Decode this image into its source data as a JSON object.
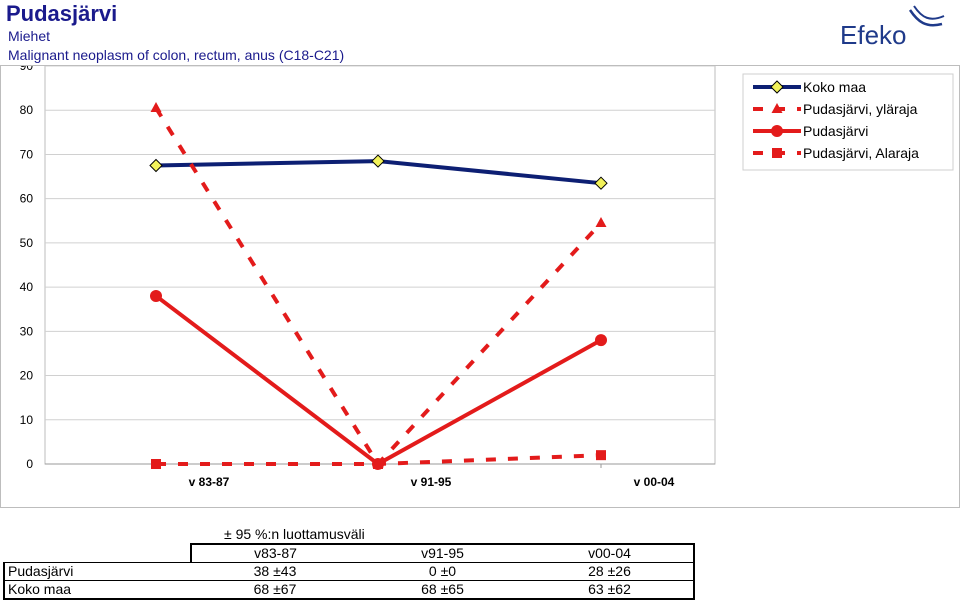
{
  "header": {
    "title": "Pudasjärvi",
    "subtitle": "Miehet",
    "diagnosis": "Malignant neoplasm of colon, rectum, anus (C18-C21)",
    "logo_text": "Efeko",
    "logo_color": "#1f3a8a"
  },
  "chart_data": {
    "type": "line",
    "categories": [
      "v 83-87",
      "v 91-95",
      "v 00-04"
    ],
    "ylim": [
      0,
      90
    ],
    "yticks": [
      0,
      10,
      20,
      30,
      40,
      50,
      60,
      70,
      80,
      90
    ],
    "grid": true,
    "legend_position": "top-right",
    "series": [
      {
        "name": "Koko maa",
        "values": [
          67.5,
          68.5,
          63.5
        ],
        "color": "#0d1f73",
        "style": "solid",
        "marker": "diamond"
      },
      {
        "name": "Pudasjärvi, yläraja",
        "values": [
          80.5,
          0,
          54.5
        ],
        "color": "#e31b1b",
        "style": "dashed",
        "marker": "triangle"
      },
      {
        "name": "Pudasjärvi",
        "values": [
          38,
          0,
          28
        ],
        "color": "#e31b1b",
        "style": "solid",
        "marker": "circle"
      },
      {
        "name": "Pudasjärvi, Alaraja",
        "values": [
          0,
          0,
          2
        ],
        "color": "#e31b1b",
        "style": "dashed",
        "marker": "square"
      }
    ]
  },
  "ci_table": {
    "title": "± 95 %:n luottamusväli",
    "columns": [
      "v83-87",
      "v91-95",
      "v00-04"
    ],
    "rows": [
      {
        "label": "Pudasjärvi",
        "values": [
          "38 ±43",
          "0 ±0",
          "28 ±26"
        ]
      },
      {
        "label": "Koko maa",
        "values": [
          "68 ±67",
          "68 ±65",
          "63 ±62"
        ]
      }
    ]
  }
}
